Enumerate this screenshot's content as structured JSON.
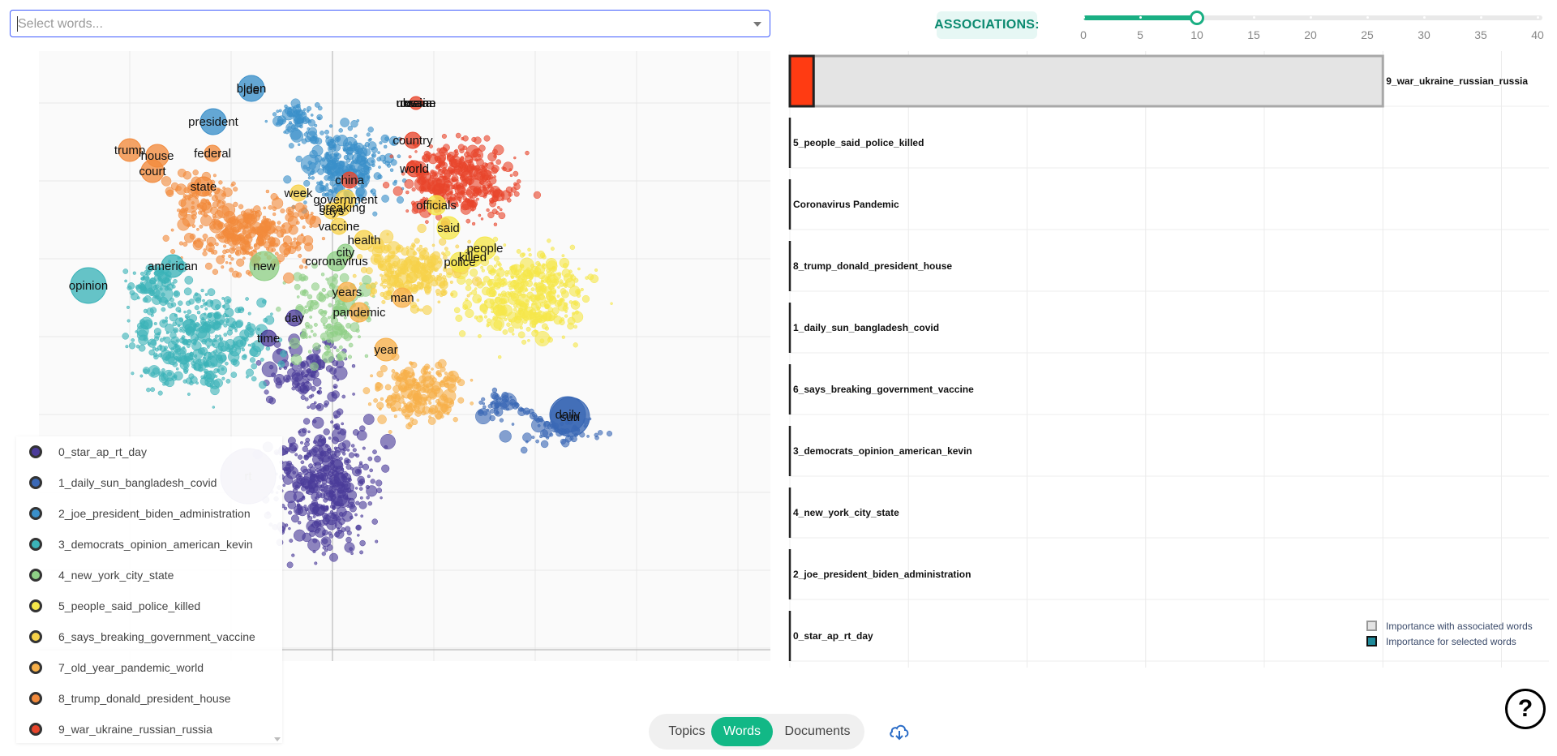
{
  "search": {
    "placeholder": "Select words..."
  },
  "associations": {
    "label": "ASSOCIATIONS:",
    "value": 10,
    "min": 0,
    "max": 40,
    "marks": [
      "0",
      "5",
      "10",
      "15",
      "20",
      "25",
      "30",
      "35",
      "40"
    ],
    "color": "#1aaf83"
  },
  "scatter": {
    "word_labels": [
      "biden",
      "joe",
      "president",
      "trump",
      "house",
      "federal",
      "court",
      "state",
      "russia",
      "ukraine",
      "russian",
      "war",
      "country",
      "world",
      "china",
      "week",
      "government",
      "breaking",
      "says",
      "officials",
      "vaccine",
      "health",
      "said",
      "people",
      "killed",
      "police",
      "city",
      "coronavirus",
      "american",
      "new",
      "opinion",
      "years",
      "man",
      "pandemic",
      "day",
      "time",
      "year",
      "daily",
      "sun",
      "rt"
    ]
  },
  "legend": {
    "items": [
      {
        "label": "0_star_ap_rt_day",
        "color": "#4b3b9a"
      },
      {
        "label": "1_daily_sun_bangladesh_covid",
        "color": "#3a68b5"
      },
      {
        "label": "2_joe_president_biden_administration",
        "color": "#3a8fc9"
      },
      {
        "label": "3_democrats_opinion_american_kevin",
        "color": "#3bb3b8"
      },
      {
        "label": "4_new_york_city_state",
        "color": "#8fcf86"
      },
      {
        "label": "5_people_said_police_killed",
        "color": "#f5e74a"
      },
      {
        "label": "6_says_breaking_government_vaccine",
        "color": "#f7d24a"
      },
      {
        "label": "7_old_year_pandemic_world",
        "color": "#f7b04a"
      },
      {
        "label": "8_trump_donald_president_house",
        "color": "#f28a3c"
      },
      {
        "label": "9_war_ukraine_russian_russia",
        "color": "#e8452c"
      }
    ]
  },
  "bar_chart": {
    "chart_data": {
      "type": "bar",
      "orientation": "horizontal",
      "categories": [
        "9_war_ukraine_russian_russia",
        "5_people_said_police_killed",
        "Coronavirus Pandemic",
        "8_trump_donald_president_house",
        "1_daily_sun_bangladesh_covid",
        "6_says_breaking_government_vaccine",
        "3_democrats_opinion_american_kevin",
        "4_new_york_city_state",
        "2_joe_president_biden_administration",
        "0_star_ap_rt_day"
      ],
      "series": [
        {
          "name": "Importance with associated words",
          "values": [
            25,
            0,
            0,
            0,
            0,
            0,
            0,
            0,
            0,
            0
          ],
          "color": "#e4e4e4"
        },
        {
          "name": "Importance for selected words",
          "values": [
            1,
            0,
            0,
            0,
            0,
            0,
            0,
            0,
            0,
            0
          ],
          "color": "#ff3b12"
        }
      ],
      "xlim": [
        0,
        32
      ],
      "grid": true,
      "legend_position": "bottom-right"
    }
  },
  "tabs": [
    "Topics",
    "Words",
    "Documents"
  ],
  "active_tab": "Words",
  "help_label": "?"
}
